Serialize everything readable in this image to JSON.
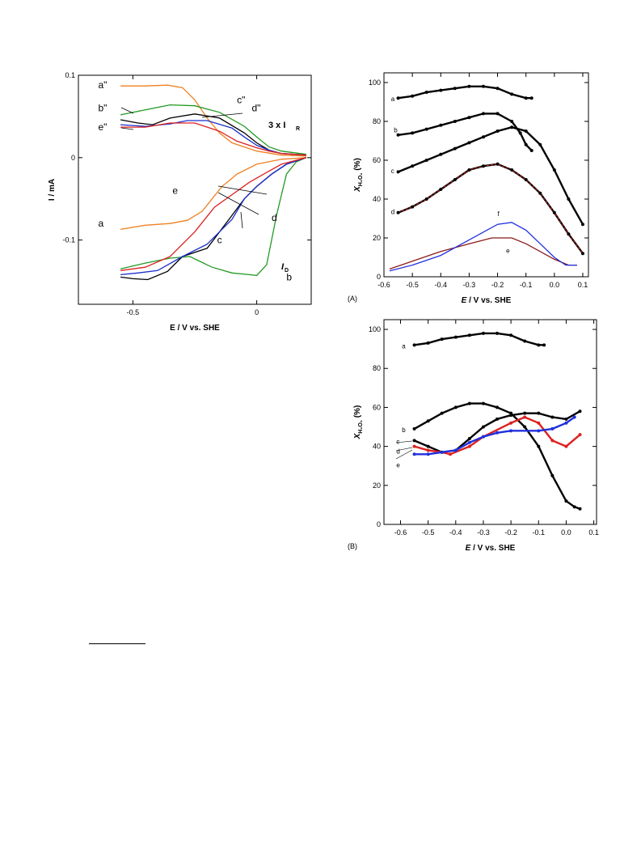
{
  "figure": {
    "footnote_rule": true
  },
  "chart_data": [
    {
      "type": "line",
      "id": "left",
      "title": "",
      "xlabel": "E / V vs. SHE",
      "ylabel": "I / mA",
      "xlim": [
        -0.72,
        0.22
      ],
      "ylim": [
        -0.178,
        0.1
      ],
      "xticks": [
        {
          "v": -0.5,
          "label": "-0.5"
        },
        {
          "v": 0,
          "label": "0"
        }
      ],
      "yticks": [
        {
          "v": 0.1,
          "label": "0.1"
        },
        {
          "v": 0,
          "label": "0"
        },
        {
          "v": -0.1,
          "label": "-0.1"
        }
      ],
      "annotations": {
        "ring_label": "3 x I",
        "ring_sub": "R",
        "disk_label": "I",
        "disk_sub": "D"
      },
      "series": [
        {
          "name": "a",
          "color": "#f08020",
          "x": [
            -0.55,
            -0.45,
            -0.35,
            -0.28,
            -0.22,
            -0.18,
            -0.14,
            -0.08,
            0,
            0.1,
            0.2
          ],
          "y": [
            -0.087,
            -0.082,
            -0.08,
            -0.076,
            -0.065,
            -0.05,
            -0.035,
            -0.02,
            -0.008,
            -0.002,
            0
          ]
        },
        {
          "name": "b",
          "color": "#229922",
          "x": [
            -0.55,
            -0.45,
            -0.35,
            -0.27,
            -0.18,
            -0.1,
            -0.03,
            0,
            0.04,
            0.08,
            0.12,
            0.16,
            0.2
          ],
          "y": [
            -0.135,
            -0.128,
            -0.122,
            -0.12,
            -0.133,
            -0.14,
            -0.142,
            -0.143,
            -0.13,
            -0.07,
            -0.02,
            -0.005,
            0
          ]
        },
        {
          "name": "c",
          "color": "#000000",
          "x": [
            -0.55,
            -0.5,
            -0.44,
            -0.36,
            -0.3,
            -0.2,
            -0.1,
            -0.05,
            0,
            0.06,
            0.12,
            0.2
          ],
          "y": [
            -0.145,
            -0.147,
            -0.148,
            -0.138,
            -0.12,
            -0.11,
            -0.07,
            -0.05,
            -0.035,
            -0.02,
            -0.008,
            0
          ]
        },
        {
          "name": "d",
          "color": "#1a2fcc",
          "x": [
            -0.55,
            -0.48,
            -0.4,
            -0.3,
            -0.2,
            -0.1,
            -0.05,
            0,
            0.06,
            0.12,
            0.2
          ],
          "y": [
            -0.142,
            -0.14,
            -0.137,
            -0.12,
            -0.105,
            -0.075,
            -0.05,
            -0.035,
            -0.02,
            -0.008,
            0
          ]
        },
        {
          "name": "e",
          "color": "#dd2020",
          "x": [
            -0.55,
            -0.45,
            -0.35,
            -0.25,
            -0.17,
            -0.1,
            -0.03,
            0.04,
            0.1,
            0.2
          ],
          "y": [
            -0.137,
            -0.133,
            -0.12,
            -0.09,
            -0.06,
            -0.045,
            -0.03,
            -0.018,
            -0.008,
            0
          ]
        },
        {
          "name": "a\"",
          "color": "#f08020",
          "x": [
            -0.55,
            -0.45,
            -0.36,
            -0.3,
            -0.25,
            -0.2,
            -0.15,
            -0.1,
            0,
            0.1,
            0.2
          ],
          "y": [
            0.087,
            0.087,
            0.088,
            0.085,
            0.07,
            0.048,
            0.03,
            0.018,
            0.008,
            0.003,
            0.002
          ]
        },
        {
          "name": "b\"",
          "color": "#229922",
          "x": [
            -0.55,
            -0.45,
            -0.35,
            -0.25,
            -0.15,
            -0.05,
            0,
            0.05,
            0.1,
            0.2
          ],
          "y": [
            0.052,
            0.058,
            0.064,
            0.063,
            0.055,
            0.038,
            0.025,
            0.013,
            0.008,
            0.004
          ]
        },
        {
          "name": "c\"",
          "color": "#000000",
          "x": [
            -0.55,
            -0.48,
            -0.42,
            -0.35,
            -0.25,
            -0.15,
            -0.05,
            0,
            0.05,
            0.1,
            0.2
          ],
          "y": [
            0.046,
            0.042,
            0.04,
            0.048,
            0.053,
            0.048,
            0.03,
            0.018,
            0.009,
            0.005,
            0.003
          ]
        },
        {
          "name": "d\"",
          "color": "#1a2fcc",
          "x": [
            -0.55,
            -0.45,
            -0.35,
            -0.28,
            -0.2,
            -0.1,
            -0.05,
            0,
            0.05,
            0.1,
            0.2
          ],
          "y": [
            0.04,
            0.038,
            0.041,
            0.045,
            0.045,
            0.036,
            0.025,
            0.015,
            0.009,
            0.005,
            0.003
          ]
        },
        {
          "name": "e\"",
          "color": "#dd2020",
          "x": [
            -0.55,
            -0.45,
            -0.35,
            -0.25,
            -0.15,
            -0.08,
            0,
            0.05,
            0.1,
            0.2
          ],
          "y": [
            0.037,
            0.037,
            0.042,
            0.042,
            0.032,
            0.02,
            0.012,
            0.008,
            0.005,
            0.003
          ]
        }
      ],
      "labels": [
        {
          "text": "a\"",
          "x": -0.64,
          "y": 0.088
        },
        {
          "text": "b\"",
          "x": -0.64,
          "y": 0.06
        },
        {
          "text": "e\"",
          "x": -0.64,
          "y": 0.037
        },
        {
          "text": "c\"",
          "x": -0.08,
          "y": 0.07
        },
        {
          "text": "d\"",
          "x": -0.02,
          "y": 0.06
        },
        {
          "text": "e",
          "x": -0.34,
          "y": -0.04
        },
        {
          "text": "d",
          "x": 0.06,
          "y": -0.073
        },
        {
          "text": "c",
          "x": -0.16,
          "y": -0.1
        },
        {
          "text": "a",
          "x": -0.64,
          "y": -0.08
        },
        {
          "text": "b",
          "x": 0.12,
          "y": -0.145
        }
      ]
    },
    {
      "type": "line",
      "id": "A",
      "panel_label": "(A)",
      "xlabel": "E / V vs. SHE",
      "ylabel_main": "X",
      "ylabel_sub": "H₂O₂",
      "ylabel_unit": " (%)",
      "xlim": [
        -0.6,
        0.12
      ],
      "ylim": [
        0,
        105
      ],
      "xticks": [
        {
          "v": -0.6,
          "label": "-0.6"
        },
        {
          "v": -0.5,
          "label": "-0.5"
        },
        {
          "v": -0.4,
          "label": "-0.4"
        },
        {
          "v": -0.3,
          "label": "-0.3"
        },
        {
          "v": -0.2,
          "label": "-0.2"
        },
        {
          "v": -0.1,
          "label": "-0.1"
        },
        {
          "v": 0,
          "label": "0.0"
        },
        {
          "v": 0.1,
          "label": "0.1"
        }
      ],
      "yticks": [
        {
          "v": 0,
          "label": "0"
        },
        {
          "v": 20,
          "label": "20"
        },
        {
          "v": 40,
          "label": "40"
        },
        {
          "v": 60,
          "label": "60"
        },
        {
          "v": 80,
          "label": "80"
        },
        {
          "v": 100,
          "label": "100"
        }
      ],
      "series": [
        {
          "name": "a",
          "color": "#000000",
          "marker": true,
          "x": [
            -0.55,
            -0.5,
            -0.45,
            -0.4,
            -0.35,
            -0.3,
            -0.25,
            -0.2,
            -0.15,
            -0.1,
            -0.08
          ],
          "y": [
            92,
            93,
            95,
            96,
            97,
            98,
            98,
            97,
            94,
            92,
            92
          ]
        },
        {
          "name": "b",
          "color": "#000000",
          "marker": true,
          "x": [
            -0.55,
            -0.5,
            -0.45,
            -0.4,
            -0.35,
            -0.3,
            -0.25,
            -0.2,
            -0.15,
            -0.12,
            -0.1,
            -0.08
          ],
          "y": [
            73,
            74,
            76,
            78,
            80,
            82,
            84,
            84,
            80,
            74,
            68,
            65
          ]
        },
        {
          "name": "c",
          "color": "#000000",
          "marker": true,
          "x": [
            -0.55,
            -0.5,
            -0.45,
            -0.4,
            -0.35,
            -0.3,
            -0.25,
            -0.2,
            -0.15,
            -0.1,
            -0.05,
            0,
            0.05,
            0.1
          ],
          "y": [
            54,
            57,
            60,
            63,
            66,
            69,
            72,
            75,
            77,
            75,
            68,
            55,
            40,
            27
          ]
        },
        {
          "name": "d",
          "color": "#000000",
          "overlay": "#dd2020",
          "marker": true,
          "x": [
            -0.55,
            -0.5,
            -0.45,
            -0.4,
            -0.35,
            -0.3,
            -0.25,
            -0.2,
            -0.15,
            -0.1,
            -0.05,
            0,
            0.05,
            0.1
          ],
          "y": [
            33,
            36,
            40,
            45,
            50,
            55,
            57,
            58,
            55,
            50,
            43,
            33,
            22,
            12
          ]
        },
        {
          "name": "e",
          "color": "#8b1a1a",
          "x": [
            -0.58,
            -0.5,
            -0.4,
            -0.3,
            -0.22,
            -0.15,
            -0.1,
            -0.05,
            0,
            0.05,
            0.08
          ],
          "y": [
            4,
            8,
            13,
            17,
            20,
            20,
            17,
            13,
            9,
            6,
            6
          ]
        },
        {
          "name": "f",
          "color": "#2030dd",
          "x": [
            -0.58,
            -0.5,
            -0.4,
            -0.3,
            -0.2,
            -0.15,
            -0.1,
            -0.05,
            0,
            0.04,
            0.08
          ],
          "y": [
            3,
            6,
            11,
            19,
            27,
            28,
            24,
            17,
            10,
            6,
            6
          ]
        }
      ],
      "labels": [
        {
          "text": "a",
          "x": -0.575,
          "y": 92
        },
        {
          "text": "b",
          "x": -0.565,
          "y": 76
        },
        {
          "text": "c",
          "x": -0.575,
          "y": 55
        },
        {
          "text": "d",
          "x": -0.575,
          "y": 34
        },
        {
          "text": "f",
          "x": -0.2,
          "y": 33
        },
        {
          "text": "e",
          "x": -0.17,
          "y": 14
        }
      ]
    },
    {
      "type": "line",
      "id": "B",
      "panel_label": "(B)",
      "xlabel": "E / V vs. SHE",
      "ylabel_main": "X",
      "ylabel_sub": "H₂O₂",
      "ylabel_unit": " (%)",
      "xlim": [
        -0.66,
        0.11
      ],
      "ylim": [
        0,
        105
      ],
      "xticks": [
        {
          "v": -0.6,
          "label": "-0.6"
        },
        {
          "v": -0.5,
          "label": "-0.5"
        },
        {
          "v": -0.4,
          "label": "-0.4"
        },
        {
          "v": -0.3,
          "label": "-0.3"
        },
        {
          "v": -0.2,
          "label": "-0.2"
        },
        {
          "v": -0.1,
          "label": "-0.1"
        },
        {
          "v": 0,
          "label": "0.0"
        },
        {
          "v": 0.1,
          "label": "0.1"
        }
      ],
      "yticks": [
        {
          "v": 0,
          "label": "0"
        },
        {
          "v": 20,
          "label": "20"
        },
        {
          "v": 40,
          "label": "40"
        },
        {
          "v": 60,
          "label": "60"
        },
        {
          "v": 80,
          "label": "80"
        },
        {
          "v": 100,
          "label": "100"
        }
      ],
      "series": [
        {
          "name": "a",
          "color": "#000000",
          "marker": true,
          "x": [
            -0.55,
            -0.5,
            -0.45,
            -0.4,
            -0.35,
            -0.3,
            -0.25,
            -0.2,
            -0.15,
            -0.1,
            -0.08
          ],
          "y": [
            92,
            93,
            95,
            96,
            97,
            98,
            98,
            97,
            94,
            92,
            92
          ]
        },
        {
          "name": "b",
          "color": "#000000",
          "marker": true,
          "x": [
            -0.55,
            -0.5,
            -0.45,
            -0.4,
            -0.35,
            -0.3,
            -0.25,
            -0.2,
            -0.15,
            -0.1,
            -0.05,
            0,
            0.03,
            0.05
          ],
          "y": [
            49,
            53,
            57,
            60,
            62,
            62,
            60,
            57,
            50,
            40,
            25,
            12,
            9,
            8
          ]
        },
        {
          "name": "c",
          "color": "#000000",
          "marker": true,
          "x": [
            -0.55,
            -0.5,
            -0.45,
            -0.4,
            -0.35,
            -0.3,
            -0.25,
            -0.2,
            -0.15,
            -0.1,
            -0.05,
            0,
            0.05
          ],
          "y": [
            43,
            40,
            37,
            38,
            44,
            50,
            54,
            56,
            57,
            57,
            55,
            54,
            58
          ]
        },
        {
          "name": "d",
          "color": "#dd2020",
          "marker": true,
          "x": [
            -0.55,
            -0.5,
            -0.45,
            -0.42,
            -0.35,
            -0.3,
            -0.2,
            -0.15,
            -0.1,
            -0.05,
            0,
            0.05
          ],
          "y": [
            40,
            38,
            37,
            36,
            40,
            45,
            52,
            55,
            52,
            43,
            40,
            46
          ]
        },
        {
          "name": "e",
          "color": "#2030dd",
          "marker": true,
          "x": [
            -0.55,
            -0.5,
            -0.45,
            -0.4,
            -0.35,
            -0.3,
            -0.25,
            -0.2,
            -0.1,
            -0.05,
            0,
            0.03
          ],
          "y": [
            36,
            36,
            37,
            38,
            42,
            45,
            47,
            48,
            48,
            49,
            52,
            55
          ]
        }
      ],
      "labels": [
        {
          "text": "a",
          "x": -0.595,
          "y": 92
        },
        {
          "text": "b",
          "x": -0.595,
          "y": 49
        },
        {
          "text": "c",
          "x": -0.615,
          "y": 43
        },
        {
          "text": "d",
          "x": -0.615,
          "y": 38
        },
        {
          "text": "e",
          "x": -0.615,
          "y": 31
        }
      ]
    }
  ]
}
